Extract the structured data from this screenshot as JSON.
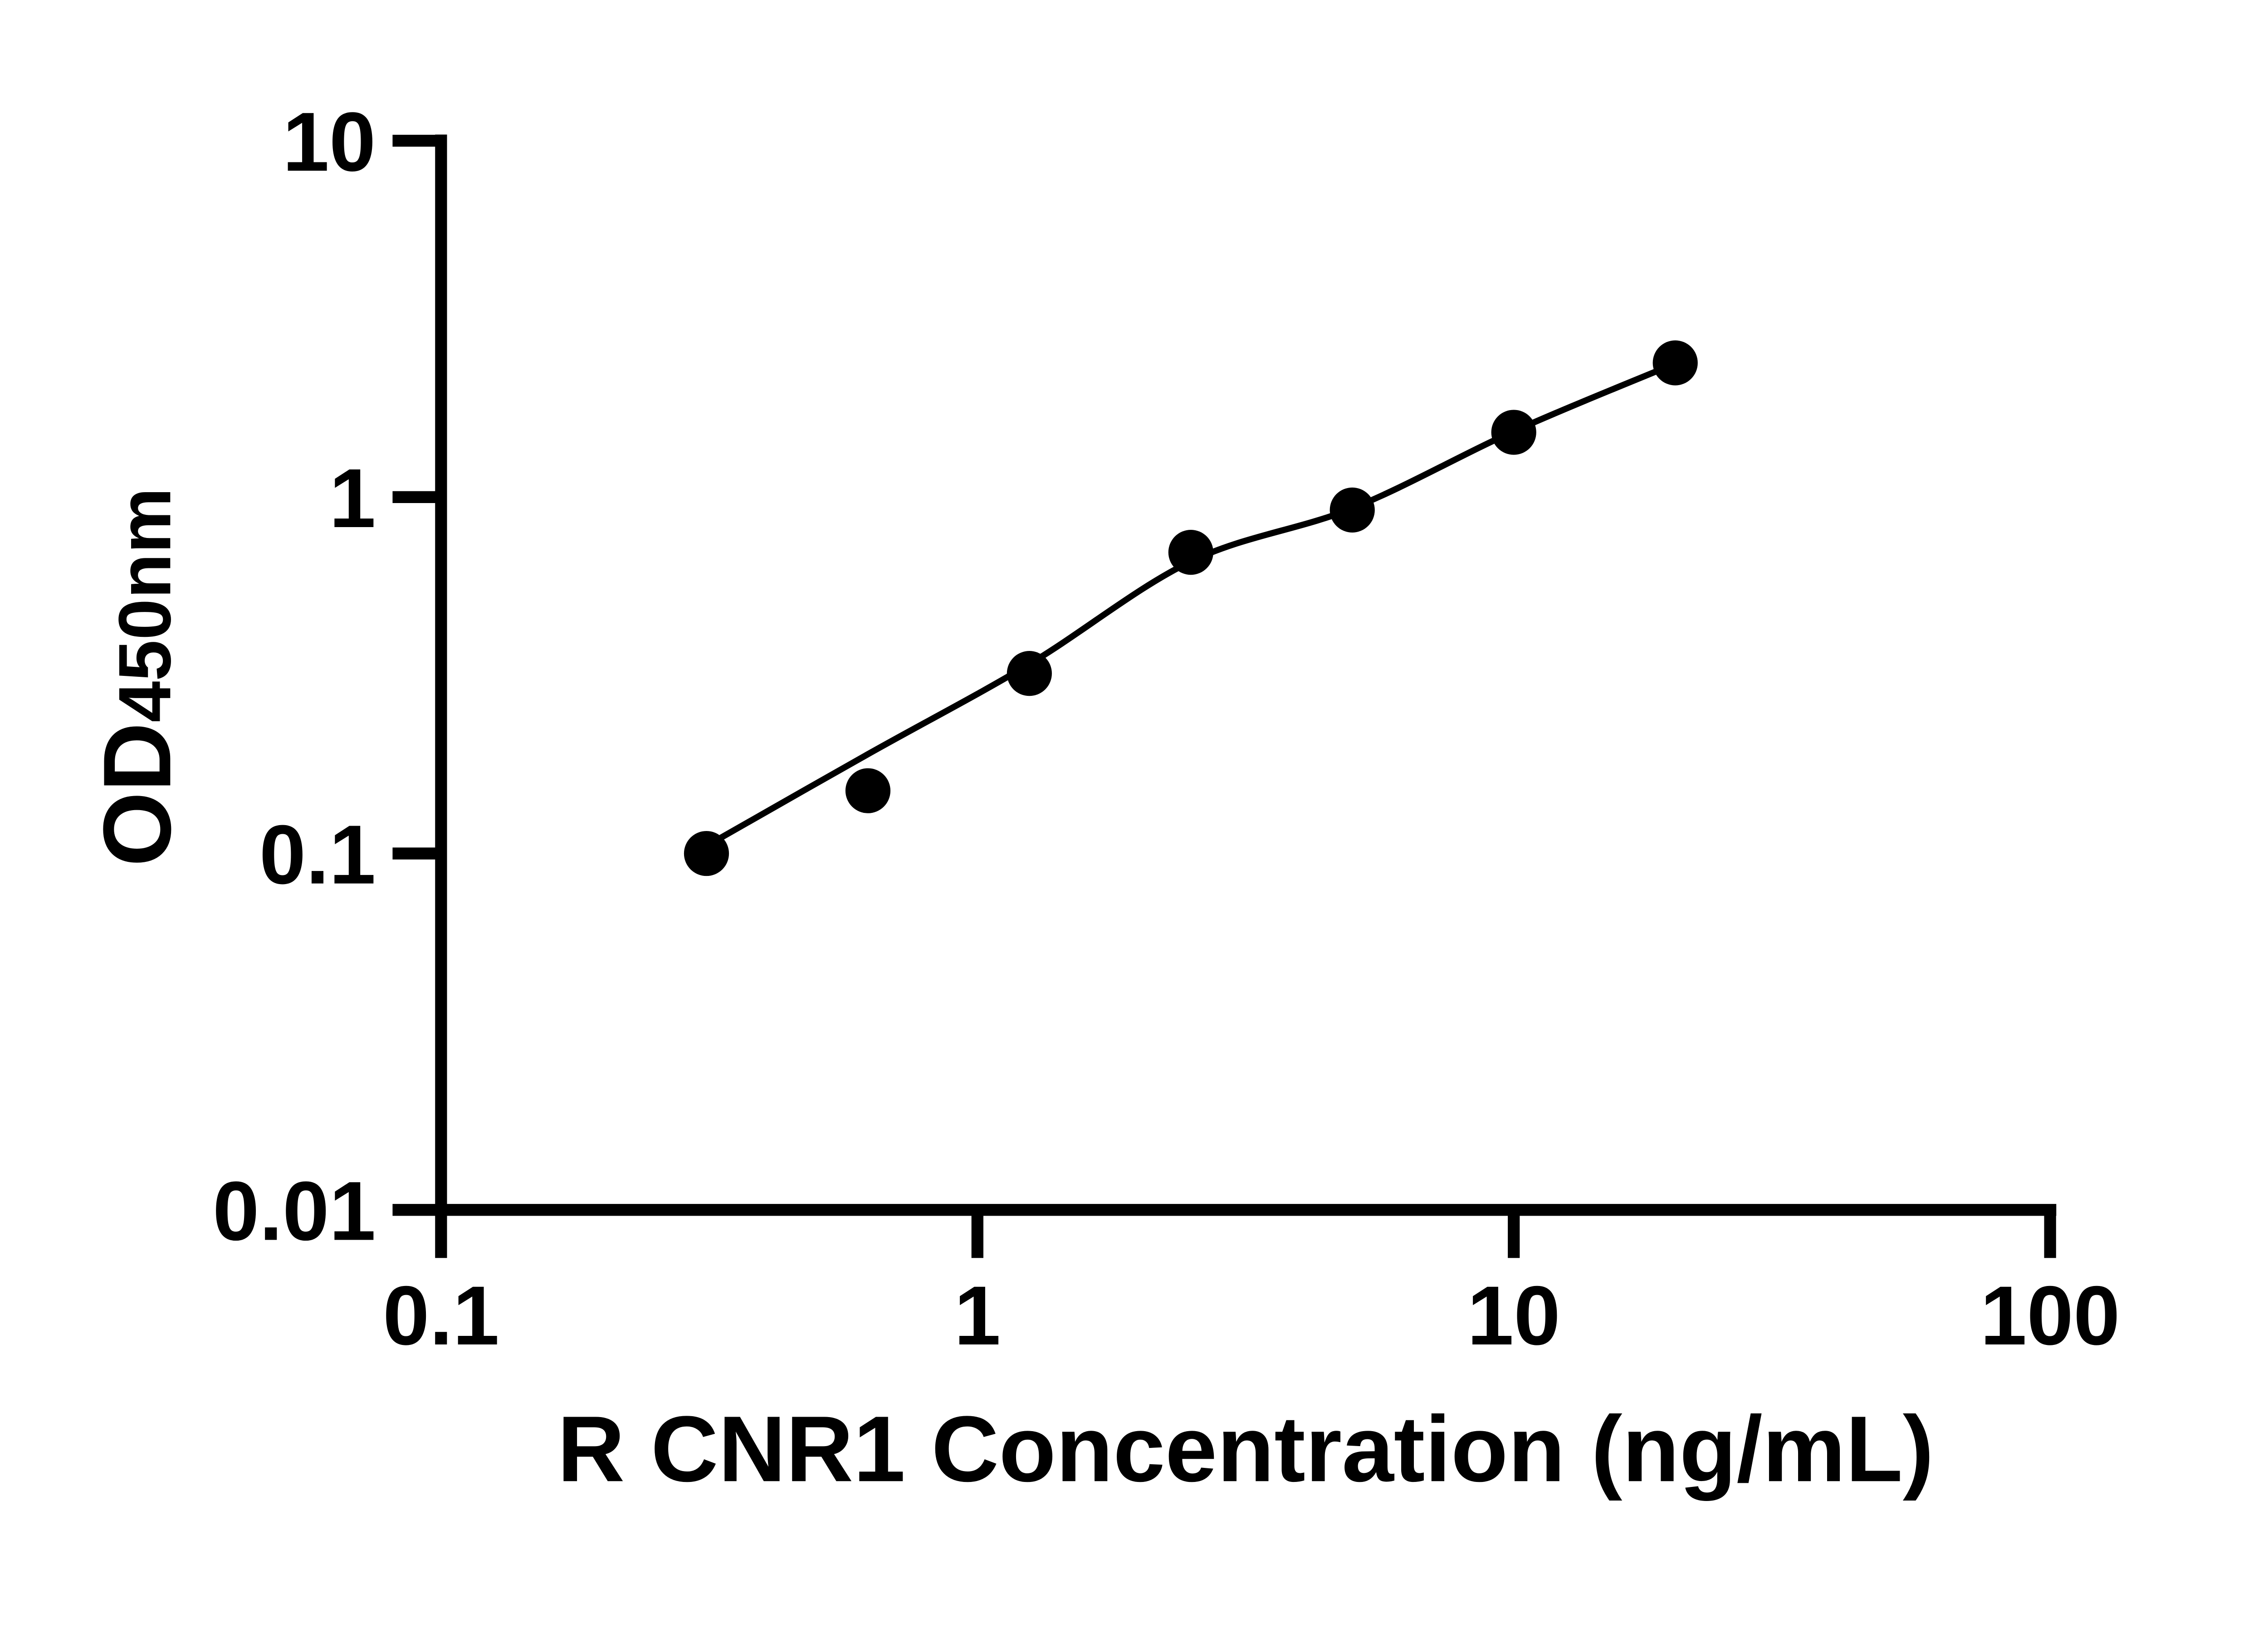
{
  "figure": {
    "background_color": "#ffffff",
    "foreground_color": "#000000"
  },
  "chart_data": {
    "type": "scatter",
    "title": "",
    "xlabel": "R CNR1 Concentration (ng/mL)",
    "ylabel_main": "OD",
    "ylabel_sub": "450nm",
    "x_scale": "log",
    "y_scale": "log",
    "xlim": [
      0.1,
      100
    ],
    "ylim": [
      0.01,
      10
    ],
    "grid": false,
    "legend_visible": false,
    "x_ticks": [
      {
        "value": 0.1,
        "label": "0.1"
      },
      {
        "value": 1,
        "label": "1"
      },
      {
        "value": 10,
        "label": "10"
      },
      {
        "value": 100,
        "label": "100"
      }
    ],
    "y_ticks": [
      {
        "value": 10,
        "label": "10"
      },
      {
        "value": 1,
        "label": "1"
      },
      {
        "value": 0.1,
        "label": "0.1"
      },
      {
        "value": 0.01,
        "label": "0.01"
      }
    ],
    "series": [
      {
        "name": "standard-curve-points",
        "marker": "filled-circle",
        "marker_color": "#000000",
        "points": [
          {
            "x": 0.3125,
            "od": 0.1
          },
          {
            "x": 0.625,
            "od": 0.15
          },
          {
            "x": 1.25,
            "od": 0.32
          },
          {
            "x": 2.5,
            "od": 0.7
          },
          {
            "x": 5,
            "od": 0.92
          },
          {
            "x": 10,
            "od": 1.52
          },
          {
            "x": 20,
            "od": 2.38
          }
        ]
      }
    ],
    "fit_curve": {
      "name": "fitted-standard-curve",
      "line_color": "#000000",
      "points": [
        {
          "x": 0.3125,
          "od": 0.105
        },
        {
          "x": 0.625,
          "od": 0.19
        },
        {
          "x": 1.25,
          "od": 0.34
        },
        {
          "x": 2.5,
          "od": 0.66
        },
        {
          "x": 5,
          "od": 0.93
        },
        {
          "x": 10,
          "od": 1.53
        },
        {
          "x": 20,
          "od": 2.37
        }
      ]
    }
  }
}
